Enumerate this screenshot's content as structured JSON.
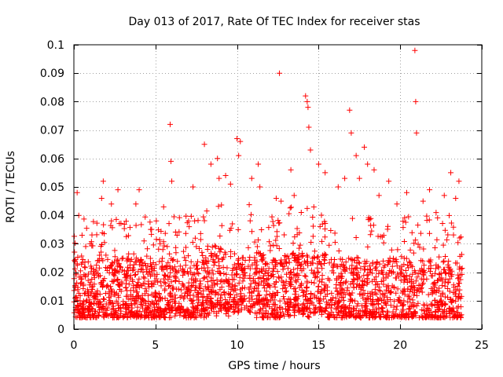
{
  "chart_data": {
    "type": "scatter",
    "title": "Day 013 of 2017, Rate Of TEC Index for receiver stas",
    "xlabel": "GPS time / hours",
    "ylabel": "ROTI / TECUs",
    "xlim": [
      0,
      25
    ],
    "ylim": [
      0,
      0.1
    ],
    "grid": true,
    "marker": "+",
    "color": "#ff0000",
    "xticks": [
      0,
      5,
      10,
      15,
      20,
      25
    ],
    "xtick_labels": [
      "0",
      "5",
      "10",
      "15",
      "20",
      "25"
    ],
    "yticks": [
      0,
      0.01,
      0.02,
      0.03,
      0.04,
      0.05,
      0.06,
      0.07,
      0.08,
      0.09,
      0.1
    ],
    "ytick_labels": [
      "0",
      "0.01",
      "0.02",
      "0.03",
      "0.04",
      "0.05",
      "0.06",
      "0.07",
      "0.08",
      "0.09",
      "0.1"
    ],
    "series": [
      {
        "name": "ROTI",
        "x": [
          0.2,
          0.3,
          0.5,
          1.0,
          1.7,
          1.8,
          2.3,
          2.7,
          3.8,
          4.0,
          4.3,
          5.5,
          5.9,
          5.95,
          6.0,
          7.3,
          8.0,
          8.4,
          8.8,
          8.9,
          9.3,
          9.6,
          10.0,
          10.1,
          10.2,
          10.9,
          11.3,
          11.4,
          12.4,
          12.6,
          12.7,
          13.3,
          13.5,
          14.2,
          14.3,
          14.35,
          14.4,
          14.5,
          15.0,
          15.4,
          16.2,
          16.6,
          16.9,
          17.0,
          17.3,
          17.5,
          17.8,
          18.0,
          18.4,
          18.7,
          19.3,
          19.8,
          20.4,
          20.9,
          20.95,
          21.0,
          21.4,
          21.8,
          22.2,
          22.7,
          23.1,
          23.4,
          23.6
        ],
        "y": [
          0.048,
          0.04,
          0.033,
          0.03,
          0.046,
          0.052,
          0.044,
          0.049,
          0.044,
          0.049,
          0.031,
          0.043,
          0.072,
          0.059,
          0.052,
          0.05,
          0.065,
          0.058,
          0.06,
          0.053,
          0.054,
          0.051,
          0.067,
          0.061,
          0.066,
          0.053,
          0.058,
          0.05,
          0.046,
          0.09,
          0.045,
          0.056,
          0.047,
          0.082,
          0.08,
          0.078,
          0.071,
          0.063,
          0.058,
          0.055,
          0.05,
          0.053,
          0.077,
          0.069,
          0.061,
          0.053,
          0.064,
          0.058,
          0.056,
          0.047,
          0.052,
          0.044,
          0.048,
          0.098,
          0.08,
          0.069,
          0.045,
          0.049,
          0.041,
          0.047,
          0.055,
          0.046,
          0.052
        ]
      }
    ],
    "dense_band": {
      "x_range": [
        0,
        23.8
      ],
      "y_min": 0.004,
      "y_max": 0.025,
      "note": "thousands of points form a continuous band between roughly 0.004 and 0.025 TECU with scattered excursions to 0.03-0.045"
    }
  }
}
